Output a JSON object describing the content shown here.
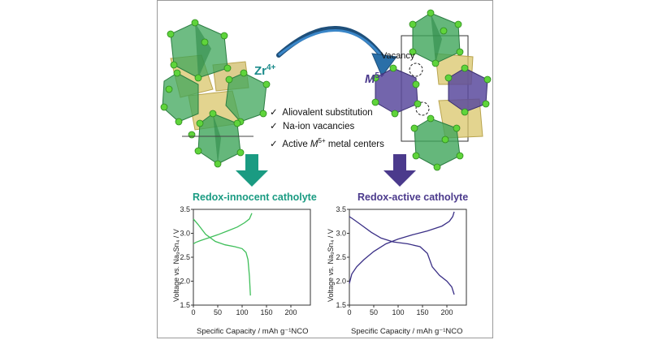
{
  "structures": {
    "left_ion": "Zr",
    "left_ion_charge": "4+",
    "right_ion": "M",
    "right_ion_charge": "5+",
    "vacancy_label": "Vacancy"
  },
  "checklist": [
    {
      "mark": "✓",
      "text": "Aliovalent substitution"
    },
    {
      "mark": "✓",
      "text": "Na-ion vacancies"
    },
    {
      "mark": "✓",
      "text": "Active ",
      "italic": "M",
      "sup": "5+",
      "tail": " metal centers"
    }
  ],
  "panels": {
    "left_title": "Redox-innocent catholyte",
    "right_title": "Redox-active catholyte"
  },
  "colors": {
    "teal": "#1a9b82",
    "purple": "#4b3a8c",
    "green_curve": "#3fbf5a",
    "purple_curve": "#3a2f86",
    "arrow_blue": "#2a6fa8"
  },
  "axes": {
    "ylabel": "Voltage vs. Na₉Sn₄ / V",
    "xlabel": "Specific Capacity / mAh g⁻¹NCO",
    "xticks": [
      "0",
      "50",
      "100",
      "150",
      "200"
    ],
    "yticks": [
      "1.5",
      "2.0",
      "2.5",
      "3.0",
      "3.5"
    ]
  },
  "chart_data": [
    {
      "type": "line",
      "title": "Redox-innocent catholyte",
      "xlabel": "Specific Capacity / mAh g⁻¹NCO",
      "ylabel": "Voltage vs. Na₉Sn₄ / V",
      "xlim": [
        0,
        240
      ],
      "ylim": [
        1.5,
        3.5
      ],
      "series": [
        {
          "values_x": [
            0,
            5,
            15,
            30,
            50,
            70,
            90,
            105,
            115,
            120
          ],
          "values_y": [
            2.78,
            2.81,
            2.85,
            2.9,
            2.97,
            3.05,
            3.13,
            3.22,
            3.3,
            3.42
          ]
        },
        {
          "values_x": [
            0,
            10,
            25,
            45,
            65,
            85,
            100,
            108,
            112,
            115,
            117
          ],
          "values_y": [
            3.3,
            3.18,
            2.98,
            2.83,
            2.76,
            2.72,
            2.68,
            2.6,
            2.45,
            2.1,
            1.7
          ]
        }
      ]
    },
    {
      "type": "line",
      "title": "Redox-active catholyte",
      "xlabel": "Specific Capacity / mAh g⁻¹NCO",
      "ylabel": "Voltage vs. Na₉Sn₄ / V",
      "xlim": [
        0,
        240
      ],
      "ylim": [
        1.5,
        3.5
      ],
      "series": [
        {
          "values_x": [
            0,
            5,
            15,
            30,
            50,
            75,
            100,
            130,
            160,
            190,
            205,
            212,
            215
          ],
          "values_y": [
            1.95,
            2.15,
            2.3,
            2.45,
            2.62,
            2.78,
            2.88,
            2.97,
            3.05,
            3.15,
            3.25,
            3.35,
            3.45
          ]
        },
        {
          "values_x": [
            0,
            10,
            25,
            45,
            65,
            90,
            120,
            145,
            160,
            170,
            185,
            200,
            210,
            215
          ],
          "values_y": [
            3.35,
            3.28,
            3.17,
            3.02,
            2.9,
            2.82,
            2.78,
            2.72,
            2.58,
            2.3,
            2.12,
            2.0,
            1.88,
            1.72
          ]
        }
      ]
    }
  ]
}
